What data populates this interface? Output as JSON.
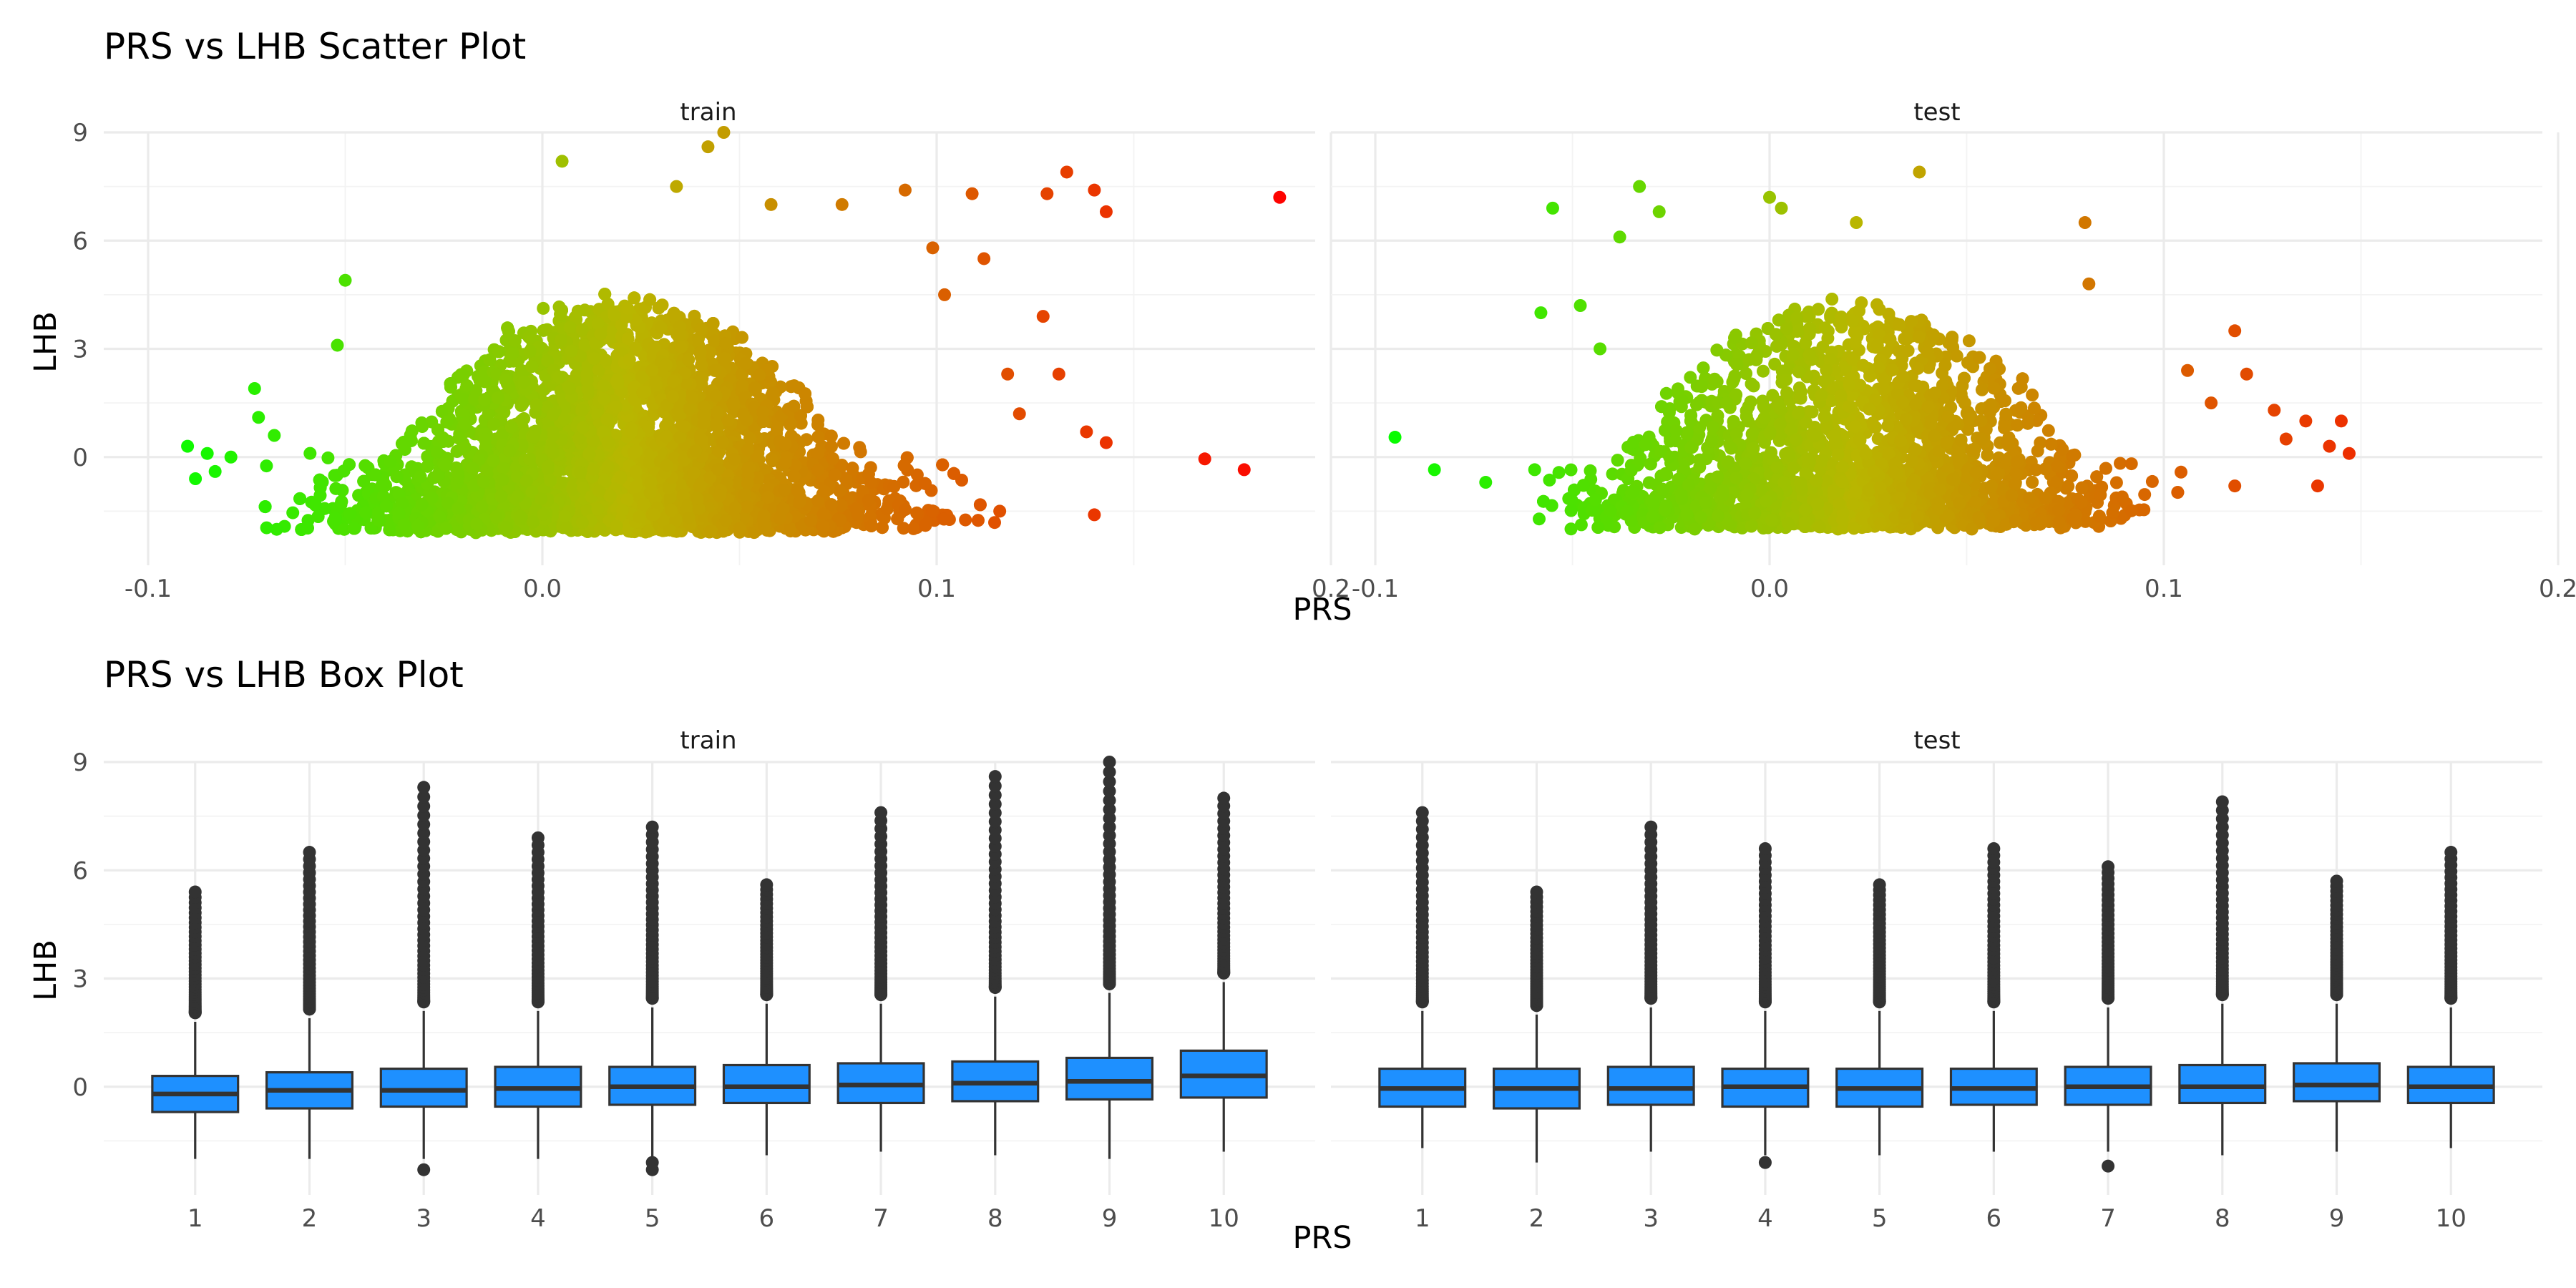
{
  "chart_data": [
    {
      "type": "scatter",
      "title": "PRS vs LHB Scatter Plot",
      "xlabel": "PRS",
      "ylabel": "LHB",
      "xlim": [
        -0.1,
        0.2
      ],
      "ylim": [
        -3,
        9
      ],
      "x_ticks": [
        "-0.1",
        "0.0",
        "0.1",
        "0.2"
      ],
      "y_ticks": [
        "0",
        "3",
        "6",
        "9"
      ],
      "grid": true,
      "color_gradient": {
        "low": "#00ff00",
        "mid": "#b9b600",
        "high": "#ff0000",
        "mapped_to": "PRS"
      },
      "panels": [
        {
          "name": "train",
          "cloud": {
            "x_min": -0.075,
            "x_max": 0.115,
            "x_center": 0.02,
            "y_floor": -2.1,
            "y_peak_mean": 1.5,
            "n": 6500
          },
          "points": [
            [
              0.187,
              7.2
            ],
            [
              0.168,
              -0.05
            ],
            [
              0.178,
              -0.35
            ],
            [
              0.14,
              7.4
            ],
            [
              0.143,
              6.8
            ],
            [
              0.133,
              7.9
            ],
            [
              0.128,
              7.3
            ],
            [
              0.138,
              0.7
            ],
            [
              0.143,
              0.4
            ],
            [
              0.14,
              -1.6
            ],
            [
              0.131,
              2.3
            ],
            [
              0.127,
              3.9
            ],
            [
              0.109,
              7.3
            ],
            [
              0.092,
              7.4
            ],
            [
              0.046,
              9.0
            ],
            [
              0.042,
              8.6
            ],
            [
              0.005,
              8.2
            ],
            [
              0.034,
              7.5
            ],
            [
              -0.05,
              4.9
            ],
            [
              -0.052,
              3.1
            ],
            [
              -0.09,
              0.3
            ],
            [
              -0.088,
              -0.6
            ],
            [
              -0.083,
              -0.4
            ],
            [
              -0.085,
              0.1
            ],
            [
              -0.079,
              0.0
            ],
            [
              -0.072,
              1.1
            ],
            [
              -0.073,
              1.9
            ],
            [
              -0.068,
              0.6
            ],
            [
              0.058,
              7.0
            ],
            [
              0.076,
              7.0
            ],
            [
              0.099,
              5.8
            ],
            [
              0.112,
              5.5
            ],
            [
              0.102,
              4.5
            ],
            [
              0.118,
              2.3
            ],
            [
              0.121,
              1.2
            ],
            [
              0.116,
              -1.5
            ]
          ]
        },
        {
          "name": "test",
          "cloud": {
            "x_min": -0.06,
            "x_max": 0.105,
            "x_center": 0.02,
            "y_floor": -2.0,
            "y_peak_mean": 1.3,
            "n": 2800
          },
          "points": [
            [
              -0.095,
              0.55
            ],
            [
              -0.085,
              -0.35
            ],
            [
              -0.072,
              -0.7
            ],
            [
              -0.055,
              6.9
            ],
            [
              -0.038,
              6.1
            ],
            [
              -0.033,
              7.5
            ],
            [
              -0.028,
              6.8
            ],
            [
              0.038,
              7.9
            ],
            [
              0.0,
              7.2
            ],
            [
              0.003,
              6.9
            ],
            [
              0.022,
              6.5
            ],
            [
              0.08,
              6.5
            ],
            [
              0.081,
              4.8
            ],
            [
              0.118,
              3.5
            ],
            [
              0.121,
              2.3
            ],
            [
              0.136,
              1.0
            ],
            [
              0.145,
              1.0
            ],
            [
              0.147,
              0.1
            ],
            [
              0.142,
              0.3
            ],
            [
              0.139,
              -0.8
            ],
            [
              0.131,
              0.5
            ],
            [
              0.128,
              1.3
            ],
            [
              0.118,
              -0.8
            ],
            [
              -0.058,
              4.0
            ],
            [
              -0.048,
              4.2
            ],
            [
              -0.043,
              3.0
            ],
            [
              0.106,
              2.4
            ],
            [
              0.112,
              1.5
            ]
          ]
        }
      ]
    },
    {
      "type": "box",
      "title": "PRS vs LHB Box Plot",
      "xlabel": "PRS",
      "ylabel": "LHB",
      "ylim": [
        -3,
        9
      ],
      "categories": [
        "1",
        "2",
        "3",
        "4",
        "5",
        "6",
        "7",
        "8",
        "9",
        "10"
      ],
      "y_ticks": [
        "0",
        "3",
        "6",
        "9"
      ],
      "grid": true,
      "fill_color": "#1e90ff",
      "panels": [
        {
          "name": "train",
          "boxes": [
            {
              "q1": -0.7,
              "median": -0.2,
              "q3": 0.3,
              "lower": -2.0,
              "upper": 1.8,
              "out_max": 5.4
            },
            {
              "q1": -0.6,
              "median": -0.1,
              "q3": 0.4,
              "lower": -2.0,
              "upper": 1.9,
              "out_max": 6.5
            },
            {
              "q1": -0.55,
              "median": -0.1,
              "q3": 0.5,
              "lower": -2.0,
              "upper": 2.1,
              "out_max": 8.3,
              "out_low": [
                -2.3
              ]
            },
            {
              "q1": -0.55,
              "median": -0.05,
              "q3": 0.55,
              "lower": -2.0,
              "upper": 2.1,
              "out_max": 6.9
            },
            {
              "q1": -0.5,
              "median": 0.0,
              "q3": 0.55,
              "lower": -2.0,
              "upper": 2.2,
              "out_max": 7.2,
              "out_low": [
                -2.1,
                -2.3
              ]
            },
            {
              "q1": -0.45,
              "median": 0.0,
              "q3": 0.6,
              "lower": -1.9,
              "upper": 2.3,
              "out_max": 5.6
            },
            {
              "q1": -0.45,
              "median": 0.05,
              "q3": 0.65,
              "lower": -1.8,
              "upper": 2.3,
              "out_max": 7.6
            },
            {
              "q1": -0.4,
              "median": 0.1,
              "q3": 0.7,
              "lower": -1.9,
              "upper": 2.5,
              "out_max": 8.6
            },
            {
              "q1": -0.35,
              "median": 0.15,
              "q3": 0.8,
              "lower": -2.0,
              "upper": 2.6,
              "out_max": 9.0
            },
            {
              "q1": -0.3,
              "median": 0.3,
              "q3": 1.0,
              "lower": -1.8,
              "upper": 2.9,
              "out_max": 8.0
            }
          ]
        },
        {
          "name": "test",
          "boxes": [
            {
              "q1": -0.55,
              "median": -0.05,
              "q3": 0.5,
              "lower": -1.7,
              "upper": 2.1,
              "out_max": 7.6
            },
            {
              "q1": -0.6,
              "median": -0.05,
              "q3": 0.5,
              "lower": -2.1,
              "upper": 2.0,
              "out_max": 5.4
            },
            {
              "q1": -0.5,
              "median": -0.05,
              "q3": 0.55,
              "lower": -1.8,
              "upper": 2.2,
              "out_max": 7.2
            },
            {
              "q1": -0.55,
              "median": 0.0,
              "q3": 0.5,
              "lower": -1.9,
              "upper": 2.1,
              "out_max": 6.6,
              "out_low": [
                -2.1
              ]
            },
            {
              "q1": -0.55,
              "median": -0.05,
              "q3": 0.5,
              "lower": -1.9,
              "upper": 2.1,
              "out_max": 5.6
            },
            {
              "q1": -0.5,
              "median": -0.05,
              "q3": 0.5,
              "lower": -1.8,
              "upper": 2.1,
              "out_max": 6.6
            },
            {
              "q1": -0.5,
              "median": 0.0,
              "q3": 0.55,
              "lower": -1.8,
              "upper": 2.2,
              "out_max": 6.1,
              "out_low": [
                -2.2
              ]
            },
            {
              "q1": -0.45,
              "median": 0.0,
              "q3": 0.6,
              "lower": -1.9,
              "upper": 2.3,
              "out_max": 7.9
            },
            {
              "q1": -0.4,
              "median": 0.05,
              "q3": 0.65,
              "lower": -1.8,
              "upper": 2.3,
              "out_max": 5.7
            },
            {
              "q1": -0.45,
              "median": 0.0,
              "q3": 0.55,
              "lower": -1.7,
              "upper": 2.2,
              "out_max": 6.5
            }
          ]
        }
      ]
    }
  ]
}
